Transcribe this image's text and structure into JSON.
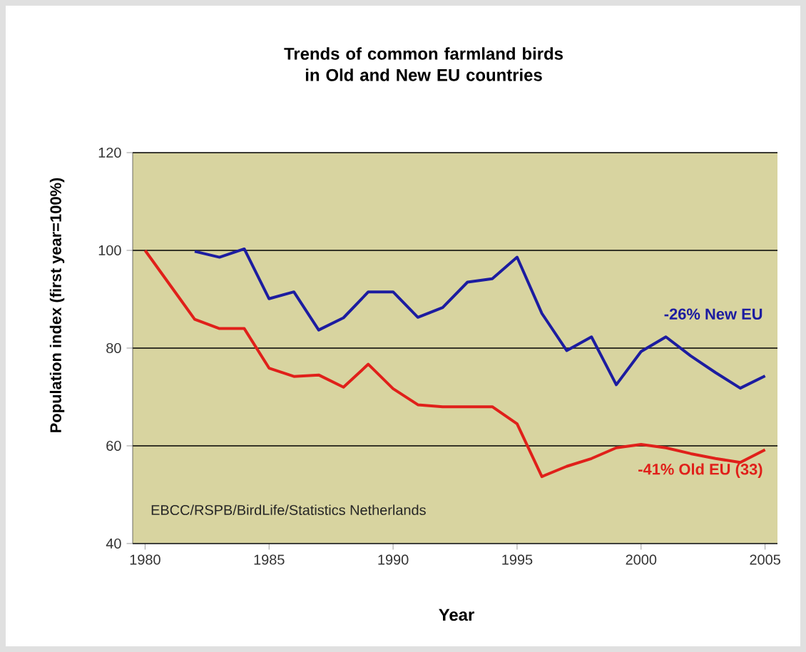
{
  "chart_data": {
    "type": "line",
    "title": "Trends of common farmland birds in Old and New EU countries",
    "xlabel": "Year",
    "ylabel": "Population index (first year=100%)",
    "series": [
      {
        "name": "-26%  New EU",
        "color": "#1c1ca0",
        "x": [
          1982,
          1983,
          1984,
          1985,
          1986,
          1987,
          1988,
          1989,
          1990,
          1991,
          1992,
          1993,
          1994,
          1995,
          1996,
          1997,
          1998,
          1999,
          2000,
          2001,
          2002,
          2003,
          2004,
          2005
        ],
        "values": [
          99.8,
          98.6,
          100.3,
          90.1,
          91.5,
          83.7,
          86.2,
          91.5,
          91.5,
          86.3,
          88.3,
          93.5,
          94.2,
          98.6,
          87.1,
          79.5,
          82.3,
          72.5,
          79.3,
          82.3,
          78.4,
          75.0,
          71.8,
          74.3
        ]
      },
      {
        "name": "-41%  Old EU (33)",
        "color": "#e0201a",
        "x": [
          1980,
          1982,
          1983,
          1984,
          1985,
          1986,
          1987,
          1988,
          1989,
          1990,
          1991,
          1992,
          1993,
          1994,
          1995,
          1996,
          1997,
          1998,
          1999,
          2000,
          2001,
          2002,
          2003,
          2004,
          2005
        ],
        "values": [
          100,
          85.9,
          84.0,
          84.0,
          75.9,
          74.2,
          74.5,
          72.0,
          76.7,
          71.7,
          68.4,
          68.0,
          68.0,
          68.0,
          64.5,
          53.7,
          55.8,
          57.4,
          59.6,
          60.3,
          59.6,
          58.4,
          57.4,
          56.6,
          59.2
        ]
      }
    ],
    "xlim": [
      1979.5,
      2005.5
    ],
    "ylim": [
      40,
      120
    ],
    "xticks": [
      1980,
      1985,
      1990,
      1995,
      2000,
      2005
    ],
    "yticks": [
      40,
      60,
      80,
      100,
      120
    ],
    "grid": "y",
    "legend": false,
    "marker": "none",
    "line_style": "solid",
    "annotations": [
      "EBCC/RSPB/BirdLife/Statistics Netherlands"
    ]
  }
}
